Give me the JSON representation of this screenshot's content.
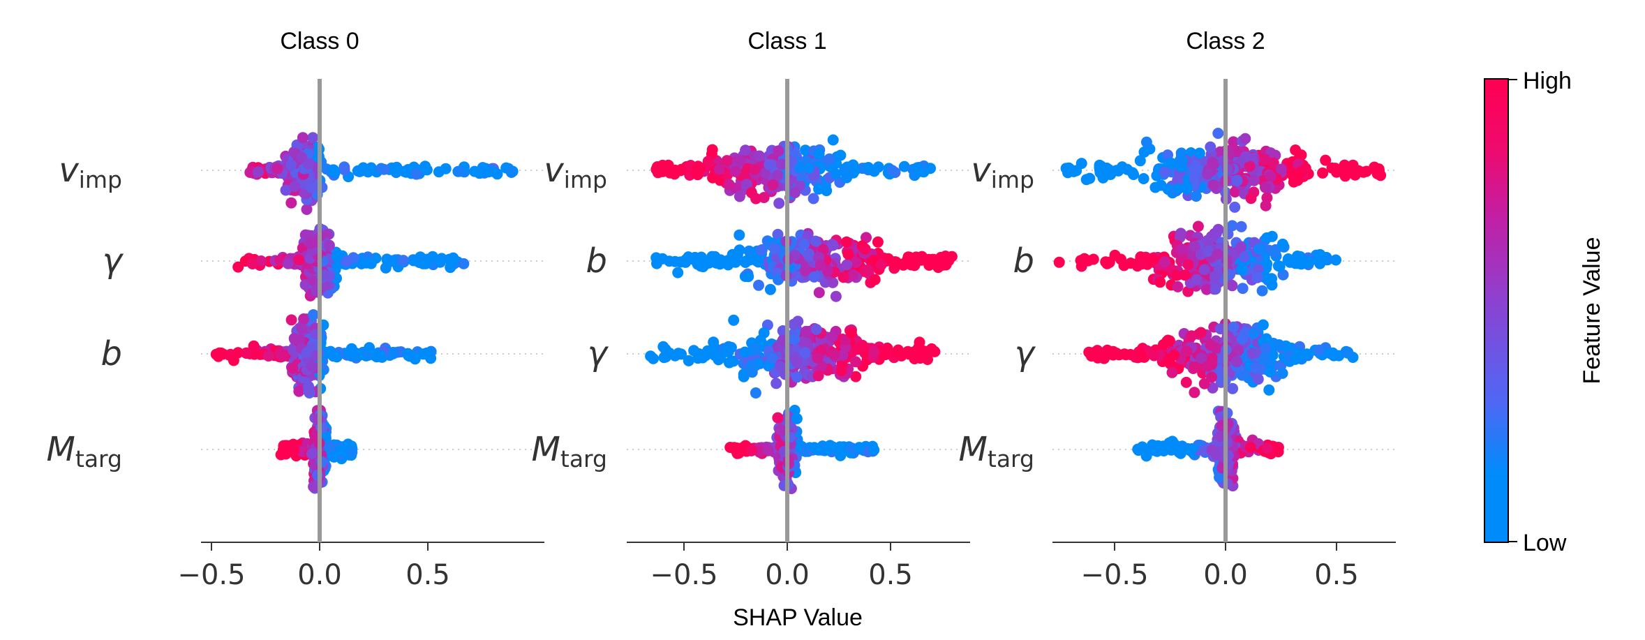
{
  "chart_data": {
    "type": "scatter",
    "subtype": "shap-beeswarm",
    "xlabel": "SHAP Value",
    "xticks": [
      "−0.5",
      "0.0",
      "0.5"
    ],
    "colorbar": {
      "title": "Feature Value",
      "high_label": "High",
      "low_label": "Low",
      "high_color": "#ff0052",
      "low_color": "#008bfb"
    },
    "panels": [
      {
        "title": "Class 0",
        "xlim": [
          -0.55,
          1.0
        ],
        "features": [
          {
            "base": "v",
            "sub": "imp",
            "distribution": {
              "min": -0.33,
              "max": 0.9,
              "center": -0.07,
              "core_width": 0.09,
              "max_spread": 0.38,
              "tail_spread": 0.06,
              "red_side": "low",
              "red_fraction": 0.65,
              "pos_blue_only": true
            }
          },
          {
            "base": "γ",
            "sub": "",
            "distribution": {
              "min": -0.38,
              "max": 0.67,
              "center": 0.0,
              "core_width": 0.08,
              "max_spread": 0.42,
              "tail_spread": 0.07,
              "red_side": "low",
              "red_fraction": 0.8,
              "pos_blue_only": true
            }
          },
          {
            "base": "b",
            "sub": "",
            "distribution": {
              "min": -0.48,
              "max": 0.52,
              "center": -0.06,
              "core_width": 0.08,
              "max_spread": 0.42,
              "tail_spread": 0.07,
              "red_side": "low",
              "red_fraction": 0.8,
              "pos_blue_only": true
            }
          },
          {
            "base": "M",
            "sub": "targ",
            "distribution": {
              "min": -0.18,
              "max": 0.15,
              "center": 0.0,
              "core_width": 0.03,
              "max_spread": 0.43,
              "tail_spread": 0.1,
              "red_side": "low",
              "red_fraction": 0.7,
              "pos_blue_only": true
            }
          }
        ]
      },
      {
        "title": "Class 1",
        "xlim": [
          -0.8,
          0.85
        ],
        "features": [
          {
            "base": "v",
            "sub": "imp",
            "distribution": {
              "min": -0.65,
              "max": 0.7,
              "center": -0.05,
              "core_width": 0.32,
              "max_spread": 0.32,
              "tail_spread": 0.1,
              "red_side": "low",
              "red_fraction": 0.85,
              "pos_blue_only": true
            }
          },
          {
            "base": "b",
            "sub": "",
            "distribution": {
              "min": -0.65,
              "max": 0.8,
              "center": 0.1,
              "core_width": 0.35,
              "max_spread": 0.32,
              "tail_spread": 0.1,
              "red_side": "high",
              "red_fraction": 0.9,
              "pos_blue_only": false
            }
          },
          {
            "base": "γ",
            "sub": "",
            "distribution": {
              "min": -0.72,
              "max": 0.72,
              "center": 0.05,
              "core_width": 0.32,
              "max_spread": 0.38,
              "tail_spread": 0.12,
              "red_side": "high",
              "red_fraction": 0.85,
              "pos_blue_only": false
            }
          },
          {
            "base": "M",
            "sub": "targ",
            "distribution": {
              "min": -0.28,
              "max": 0.43,
              "center": 0.0,
              "core_width": 0.05,
              "max_spread": 0.42,
              "tail_spread": 0.05,
              "red_side": "low",
              "red_fraction": 0.85,
              "pos_blue_only": true
            }
          }
        ]
      },
      {
        "title": "Class 2",
        "xlim": [
          -0.8,
          0.75
        ],
        "features": [
          {
            "base": "v",
            "sub": "imp",
            "distribution": {
              "min": -0.72,
              "max": 0.7,
              "center": 0.0,
              "core_width": 0.4,
              "max_spread": 0.35,
              "tail_spread": 0.12,
              "red_side": "high",
              "red_fraction": 0.9,
              "pos_blue_only": false
            }
          },
          {
            "base": "b",
            "sub": "",
            "distribution": {
              "min": -0.75,
              "max": 0.5,
              "center": -0.03,
              "core_width": 0.3,
              "max_spread": 0.38,
              "tail_spread": 0.08,
              "red_side": "low",
              "red_fraction": 0.9,
              "pos_blue_only": true
            }
          },
          {
            "base": "γ",
            "sub": "",
            "distribution": {
              "min": -0.65,
              "max": 0.58,
              "center": 0.0,
              "core_width": 0.28,
              "max_spread": 0.38,
              "tail_spread": 0.08,
              "red_side": "low",
              "red_fraction": 0.9,
              "pos_blue_only": true
            }
          },
          {
            "base": "M",
            "sub": "targ",
            "distribution": {
              "min": -0.42,
              "max": 0.25,
              "center": 0.0,
              "core_width": 0.04,
              "max_spread": 0.42,
              "tail_spread": 0.1,
              "red_side": "high",
              "red_fraction": 0.75,
              "pos_blue_only": false
            }
          }
        ]
      }
    ]
  }
}
